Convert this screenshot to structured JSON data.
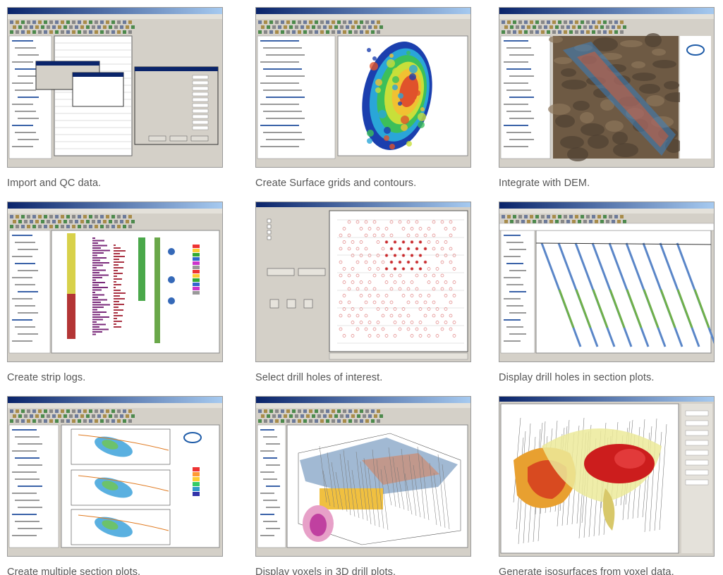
{
  "panels": [
    {
      "caption": "Import and QC data."
    },
    {
      "caption": "Create Surface grids and contours."
    },
    {
      "caption": "Integrate with DEM."
    },
    {
      "caption": "Create strip logs."
    },
    {
      "caption": "Select drill holes of interest."
    },
    {
      "caption": "Display drill holes in section plots."
    },
    {
      "caption": "Create multiple section plots."
    },
    {
      "caption": "Display voxels in 3D drill plots."
    },
    {
      "caption": "Generate isosurfaces from voxel data."
    }
  ]
}
